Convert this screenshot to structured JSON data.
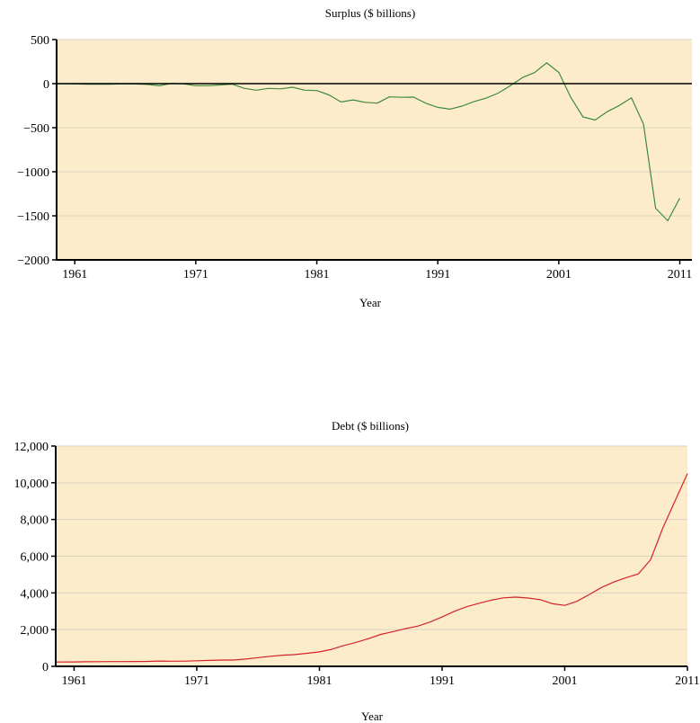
{
  "chart_data": [
    {
      "type": "line",
      "title": "Surplus ($ billions)",
      "xlabel": "Year",
      "ylabel": "",
      "xlim": [
        1959.5,
        2012
      ],
      "ylim": [
        -2000,
        500
      ],
      "yticks": [
        500,
        0,
        -500,
        -1000,
        -1500,
        -2000
      ],
      "ytick_labels": [
        "500",
        "0",
        "−500",
        "−1000",
        "−1500",
        "−2000"
      ],
      "xticks": [
        1961,
        1971,
        1981,
        1991,
        2001,
        2011
      ],
      "xtick_labels": [
        "1961",
        "1971",
        "1981",
        "1991",
        "2001",
        "2011"
      ],
      "grid": true,
      "zero_line": true,
      "colors": {
        "plot_bg": "#fdeccb",
        "line": "#3e8a3e",
        "grid": "#d9d2c0"
      },
      "series": [
        {
          "x": [
            1959.5,
            1961,
            1962,
            1963,
            1964,
            1965,
            1966,
            1967,
            1968,
            1969,
            1970,
            1971,
            1972,
            1973,
            1974,
            1975,
            1976,
            1977,
            1978,
            1979,
            1980,
            1981,
            1982,
            1983,
            1984,
            1985,
            1986,
            1987,
            1988,
            1989,
            1990,
            1991,
            1992,
            1993,
            1994,
            1995,
            1996,
            1997,
            1998,
            1999,
            2000,
            2001,
            2002,
            2003,
            2004,
            2005,
            2006,
            2007,
            2008,
            2009,
            2010,
            2011
          ],
          "values": [
            0,
            -3,
            -7,
            -5,
            -6,
            -1,
            -4,
            -9,
            -25,
            3,
            -3,
            -23,
            -23,
            -15,
            -6,
            -53,
            -74,
            -54,
            -59,
            -41,
            -74,
            -79,
            -128,
            -208,
            -185,
            -212,
            -221,
            -150,
            -155,
            -153,
            -221,
            -269,
            -290,
            -255,
            -203,
            -164,
            -107,
            -22,
            69,
            126,
            236,
            128,
            -158,
            -378,
            -413,
            -318,
            -248,
            -161,
            -459,
            -1413,
            -1556,
            -1300
          ]
        }
      ]
    },
    {
      "type": "line",
      "title": "Debt ($ billions)",
      "xlabel": "Year",
      "ylabel": "",
      "xlim": [
        1959.5,
        2011
      ],
      "ylim": [
        0,
        12000
      ],
      "yticks": [
        0,
        2000,
        4000,
        6000,
        8000,
        10000,
        12000
      ],
      "ytick_labels": [
        "0",
        "2,000",
        "4,000",
        "6,000",
        "8,000",
        "10,000",
        "12,000"
      ],
      "xticks": [
        1961,
        1971,
        1981,
        1991,
        2001,
        2011
      ],
      "xtick_labels": [
        "1961",
        "1971",
        "1981",
        "1991",
        "2001",
        "2011"
      ],
      "grid": true,
      "colors": {
        "plot_bg": "#fdeccb",
        "line": "#d4232a",
        "grid": "#d9d2c0"
      },
      "series": [
        {
          "x": [
            1959.5,
            1961,
            1962,
            1963,
            1964,
            1965,
            1966,
            1967,
            1968,
            1969,
            1970,
            1971,
            1972,
            1973,
            1974,
            1975,
            1976,
            1977,
            1978,
            1979,
            1980,
            1981,
            1982,
            1983,
            1984,
            1985,
            1986,
            1987,
            1988,
            1989,
            1990,
            1991,
            1992,
            1993,
            1994,
            1995,
            1996,
            1997,
            1998,
            1999,
            2000,
            2001,
            2002,
            2003,
            2004,
            2005,
            2006,
            2007,
            2008,
            2009,
            2010,
            2011
          ],
          "values": [
            237,
            238,
            249,
            256,
            262,
            261,
            264,
            267,
            290,
            278,
            283,
            303,
            322,
            341,
            344,
            395,
            477,
            549,
            607,
            640,
            712,
            789,
            925,
            1137,
            1307,
            1507,
            1741,
            1890,
            2052,
            2191,
            2412,
            2689,
            3000,
            3248,
            3433,
            3604,
            3734,
            3772,
            3721,
            3632,
            3410,
            3320,
            3540,
            3913,
            4296,
            4592,
            4829,
            5035,
            5803,
            7545,
            9019,
            10500
          ]
        }
      ]
    }
  ]
}
